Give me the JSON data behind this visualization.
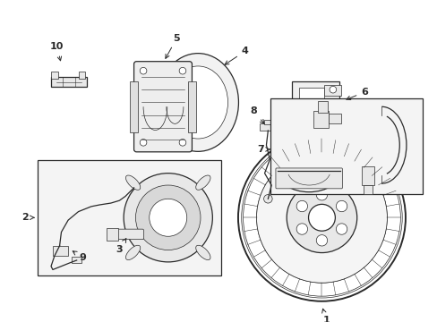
{
  "bg_color": "#ffffff",
  "line_color": "#2a2a2a",
  "shade_color": "#e8e8e8",
  "box_bg": "#f0f0f0",
  "figsize": [
    4.89,
    3.6
  ],
  "dpi": 100,
  "lw_main": 0.9,
  "lw_thin": 0.5,
  "label_fs": 8
}
